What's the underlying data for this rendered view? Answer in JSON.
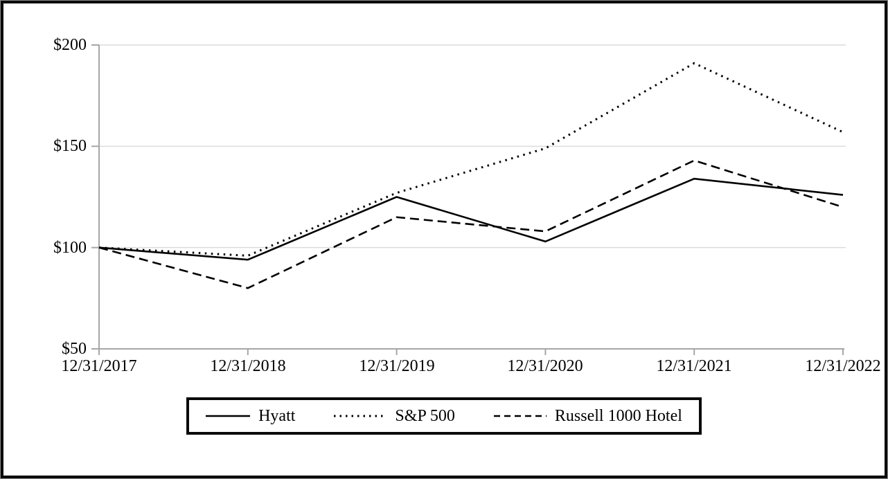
{
  "chart_data": {
    "type": "line",
    "title": "",
    "x": [
      "12/31/2017",
      "12/31/2018",
      "12/31/2019",
      "12/31/2020",
      "12/31/2021",
      "12/31/2022"
    ],
    "series": [
      {
        "name": "Hyatt",
        "style": "solid",
        "values": [
          100,
          94,
          125,
          103,
          134,
          126
        ]
      },
      {
        "name": "S&P 500",
        "style": "dotted",
        "values": [
          100,
          96,
          127,
          149,
          191,
          157
        ]
      },
      {
        "name": "Russell 1000 Hotel",
        "style": "dashed",
        "values": [
          100,
          80,
          115,
          108,
          143,
          120
        ]
      }
    ],
    "y_tick_labels": [
      "$50",
      "$100",
      "$150",
      "$200"
    ],
    "y_tick_values": [
      50,
      100,
      150,
      200
    ],
    "ylim": [
      50,
      200
    ],
    "grid": "horizontal",
    "legend_position": "bottom",
    "colors": {
      "series": "#000000",
      "axis": "#a6a6a6",
      "gridline": "#dcdcdc",
      "text": "#000000",
      "frame": "#0a0a0a"
    }
  }
}
